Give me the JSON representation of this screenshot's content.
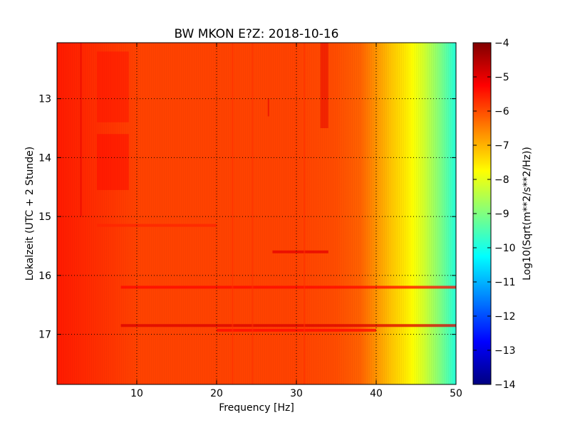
{
  "chart_data": {
    "type": "heatmap",
    "title": "BW MKON E?Z: 2018-10-16",
    "xlabel": "Frequency [Hz]",
    "ylabel": "Lokalzeit (UTC + 2 Stunde)",
    "xlim": [
      0,
      50
    ],
    "ylim": [
      17.85,
      12.05
    ],
    "y_inverted": true,
    "x_ticks": [
      10,
      20,
      30,
      40,
      50
    ],
    "x_tick_labels": [
      "10",
      "20",
      "30",
      "40",
      "50"
    ],
    "y_ticks": [
      13,
      14,
      15,
      16,
      17
    ],
    "y_tick_labels": [
      "13",
      "14",
      "15",
      "16",
      "17"
    ],
    "grid": true,
    "grid_style": "dotted",
    "colormap": "jet",
    "colorbar": {
      "label": "Log10(Sqrt(m**2/s**2/Hz))",
      "min": -14,
      "max": -4,
      "ticks": [
        -4,
        -5,
        -6,
        -7,
        -8,
        -9,
        -10,
        -11,
        -12,
        -13,
        -14
      ],
      "tick_labels": [
        "−4",
        "−5",
        "−6",
        "−7",
        "−8",
        "−9",
        "−10",
        "−11",
        "−12",
        "−13",
        "−14"
      ]
    },
    "spectral_profile": {
      "frequency_hz": [
        0,
        5,
        10,
        20,
        30,
        35,
        38,
        40,
        42,
        44,
        46,
        48,
        50
      ],
      "log10_amplitude": [
        -5.5,
        -5.7,
        -5.9,
        -5.9,
        -5.9,
        -6.0,
        -6.2,
        -6.7,
        -7.2,
        -7.6,
        -8.2,
        -9.0,
        -9.9
      ]
    },
    "features": [
      {
        "kind": "horizontal_band",
        "time": 16.85,
        "f_from": 8,
        "f_to": 50,
        "level": -4.9
      },
      {
        "kind": "horizontal_band",
        "time": 15.6,
        "f_from": 27,
        "f_to": 34,
        "level": -5.0
      },
      {
        "kind": "horizontal_band",
        "time": 16.2,
        "f_from": 8,
        "f_to": 50,
        "level": -5.3
      },
      {
        "kind": "horizontal_band",
        "time": 16.93,
        "f_from": 20,
        "f_to": 40,
        "level": -5.3
      },
      {
        "kind": "horizontal_band",
        "time": 15.15,
        "f_from": 5,
        "f_to": 20,
        "level": -5.6
      },
      {
        "kind": "patch",
        "f_from": 33,
        "f_to": 34,
        "t_from": 12.05,
        "t_to": 13.5,
        "level": -5.0
      },
      {
        "kind": "patch",
        "f_from": 5,
        "f_to": 9,
        "t_from": 13.6,
        "t_to": 14.55,
        "level": -5.3
      },
      {
        "kind": "patch",
        "f_from": 5,
        "f_to": 9,
        "t_from": 12.2,
        "t_to": 13.4,
        "level": -5.4
      },
      {
        "kind": "vertical_line",
        "f": 3,
        "t_from": 12.05,
        "t_to": 15.0,
        "level": -5.0
      },
      {
        "kind": "vertical_line",
        "f": 26.5,
        "t_from": 13.0,
        "t_to": 13.3,
        "level": -5.0
      },
      {
        "kind": "vertical_line",
        "f": 22,
        "t_from": 12.05,
        "t_to": 17.85,
        "level": -5.7
      },
      {
        "kind": "vertical_line",
        "f": 24.5,
        "t_from": 12.05,
        "t_to": 17.85,
        "level": -5.7
      },
      {
        "kind": "vertical_line",
        "f": 31,
        "t_from": 12.05,
        "t_to": 17.85,
        "level": -5.7
      }
    ]
  }
}
